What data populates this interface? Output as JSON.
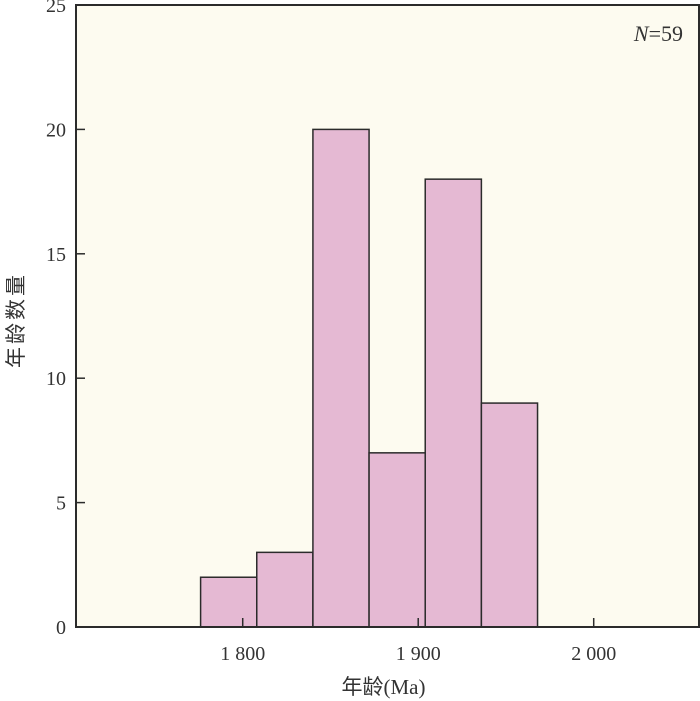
{
  "chart_data": {
    "type": "bar",
    "bins": [
      {
        "start": 1776,
        "end": 1808,
        "count": 2
      },
      {
        "start": 1808,
        "end": 1840,
        "count": 3
      },
      {
        "start": 1840,
        "end": 1872,
        "count": 20
      },
      {
        "start": 1872,
        "end": 1904,
        "count": 7
      },
      {
        "start": 1904,
        "end": 1936,
        "count": 18
      },
      {
        "start": 1936,
        "end": 1968,
        "count": 9
      }
    ],
    "xlabel": "年龄(Ma)",
    "ylabel": "年龄数量",
    "xlim": [
      1705,
      2060
    ],
    "ylim": [
      0,
      25
    ],
    "xticks": [
      1800,
      1900,
      2000
    ],
    "xtick_labels": [
      "1 800",
      "1 900",
      "2 000"
    ],
    "yticks": [
      0,
      5,
      10,
      15,
      20,
      25
    ],
    "ytick_labels": [
      "0",
      "5",
      "10",
      "15",
      "20",
      "25"
    ],
    "annotation": {
      "italic": "N",
      "rest": "=59"
    },
    "colors": {
      "bar_fill": "#e5b9d3",
      "bar_edge": "#2b2b2b",
      "plot_background": "#fdfbf0",
      "axis": "#2b2b2b",
      "text": "#333333"
    }
  }
}
